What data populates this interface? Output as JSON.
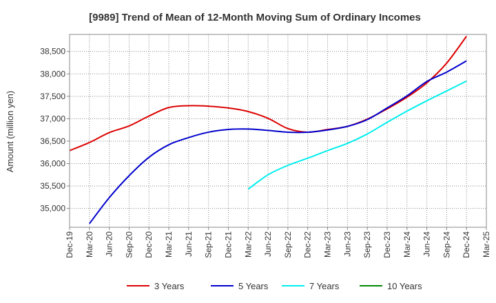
{
  "chart_data": {
    "type": "line",
    "title": "[9989]  Trend of Mean of 12-Month Moving Sum of Ordinary Incomes",
    "xlabel": "",
    "ylabel": "Amount (million yen)",
    "x_ticks": [
      "Dec-19",
      "Mar-20",
      "Jun-20",
      "Sep-20",
      "Dec-20",
      "Mar-21",
      "Jun-21",
      "Sep-21",
      "Dec-21",
      "Mar-22",
      "Jun-22",
      "Sep-22",
      "Dec-22",
      "Mar-23",
      "Jun-23",
      "Sep-23",
      "Dec-23",
      "Mar-24",
      "Jun-24",
      "Sep-24",
      "Dec-24",
      "Mar-25"
    ],
    "y_ticks": [
      35000,
      35500,
      36000,
      36500,
      37000,
      37500,
      38000,
      38500
    ],
    "y_tick_labels": [
      "35,000",
      "35,500",
      "36,000",
      "36,500",
      "37,000",
      "37,500",
      "38,000",
      "38,500"
    ],
    "ylim": [
      34580,
      38880
    ],
    "grid": true,
    "legend_position": "bottom",
    "series": [
      {
        "name": "3 Years",
        "color": "#dd0000",
        "x": [
          0,
          1,
          2,
          3,
          4,
          5,
          6,
          7,
          8,
          9,
          10,
          11,
          12,
          13,
          14,
          15,
          16,
          17,
          18,
          19,
          20
        ],
        "values": [
          36290,
          36470,
          36690,
          36840,
          37060,
          37250,
          37290,
          37280,
          37240,
          37160,
          37010,
          36780,
          36700,
          36760,
          36830,
          36990,
          37220,
          37480,
          37800,
          38240,
          38840
        ]
      },
      {
        "name": "5 Years",
        "color": "#0000cc",
        "x": [
          1,
          2,
          3,
          4,
          5,
          6,
          7,
          8,
          9,
          10,
          11,
          12,
          13,
          14,
          15,
          16,
          17,
          18,
          19,
          20
        ],
        "values": [
          34660,
          35240,
          35730,
          36140,
          36420,
          36580,
          36700,
          36760,
          36770,
          36740,
          36700,
          36700,
          36750,
          36830,
          36980,
          37240,
          37510,
          37830,
          38040,
          38290
        ]
      },
      {
        "name": "7 Years",
        "color": "#00eeee",
        "x": [
          9,
          10,
          11,
          12,
          13,
          14,
          15,
          16,
          17,
          18,
          19,
          20
        ],
        "values": [
          35430,
          35750,
          35960,
          36120,
          36290,
          36450,
          36660,
          36920,
          37170,
          37400,
          37620,
          37840
        ]
      },
      {
        "name": "10 Years",
        "color": "#008800",
        "x": [],
        "values": []
      }
    ]
  }
}
